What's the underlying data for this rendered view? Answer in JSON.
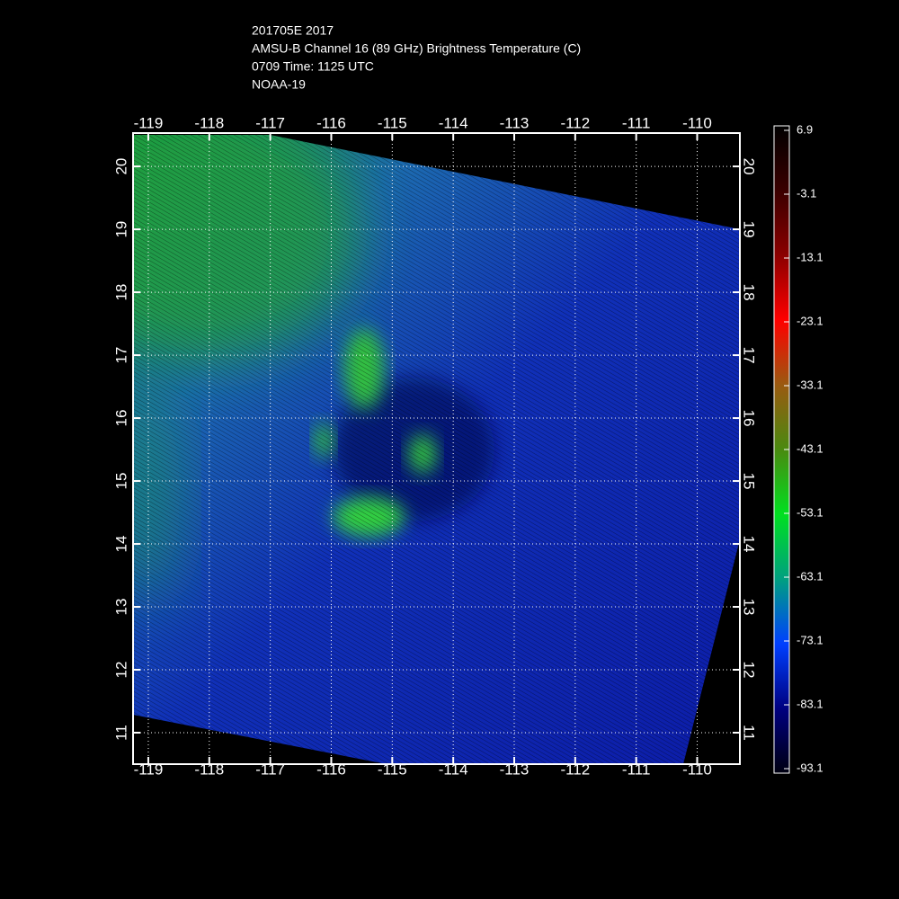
{
  "chart_data": {
    "type": "map",
    "title_lines": [
      "201705E 2017",
      "AMSU-B Channel 16 (89 GHz) Brightness Temperature (C)",
      "0709 Time: 1125 UTC",
      "NOAA-19"
    ],
    "xlim": [
      -119.25,
      -109.3
    ],
    "xticks": [
      -119,
      -118,
      -117,
      -116,
      -115,
      -114,
      -113,
      -112,
      -111,
      -110
    ],
    "ylim": [
      10.5,
      20.53
    ],
    "yticks": [
      11,
      12,
      13,
      14,
      15,
      16,
      17,
      18,
      19,
      20
    ],
    "grid": true,
    "colorbar": {
      "lim": [
        -93.1,
        6.9
      ],
      "ticks": [
        6.9,
        -3.1,
        -13.1,
        -23.1,
        -33.1,
        -43.1,
        -53.1,
        -63.1,
        -73.1,
        -83.1,
        -93.1
      ],
      "colors": [
        "#000000",
        "#3a0000",
        "#8b0000",
        "#ff0000",
        "#9a5a10",
        "#4a8a10",
        "#00e020",
        "#00a080",
        "#0040ff",
        "#000080",
        "#000010"
      ]
    }
  }
}
